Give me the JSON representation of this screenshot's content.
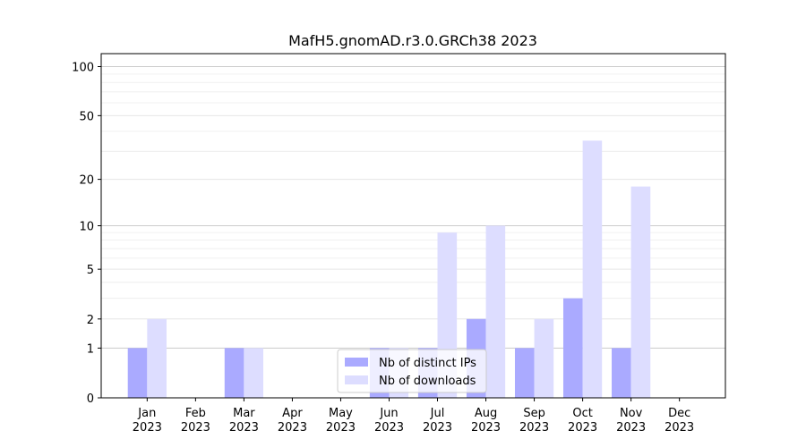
{
  "chart_data": {
    "type": "bar",
    "title": "MafH5.gnomAD.r3.0.GRCh38 2023",
    "categories": [
      "Jan\n2023",
      "Feb\n2023",
      "Mar\n2023",
      "Apr\n2023",
      "May\n2023",
      "Jun\n2023",
      "Jul\n2023",
      "Aug\n2023",
      "Sep\n2023",
      "Oct\n2023",
      "Nov\n2023",
      "Dec\n2023"
    ],
    "series": [
      {
        "name": "Nb of distinct IPs",
        "color": "#aaaaff",
        "values": [
          1,
          0,
          1,
          0,
          0,
          1,
          1,
          2,
          1,
          3,
          1,
          0
        ]
      },
      {
        "name": "Nb of downloads",
        "color": "#ddddff",
        "values": [
          2,
          0,
          1,
          0,
          0,
          1,
          9,
          10,
          2,
          35,
          18,
          0
        ]
      }
    ],
    "yscale": "log1p",
    "ylim": [
      0,
      120
    ],
    "yticks": [
      0,
      1,
      2,
      5,
      10,
      20,
      50,
      100
    ],
    "ytick_labels": [
      "0",
      "1",
      "2",
      "5",
      "10",
      "20",
      "50",
      "100"
    ],
    "grid": true,
    "legend_position": "lower-center"
  }
}
